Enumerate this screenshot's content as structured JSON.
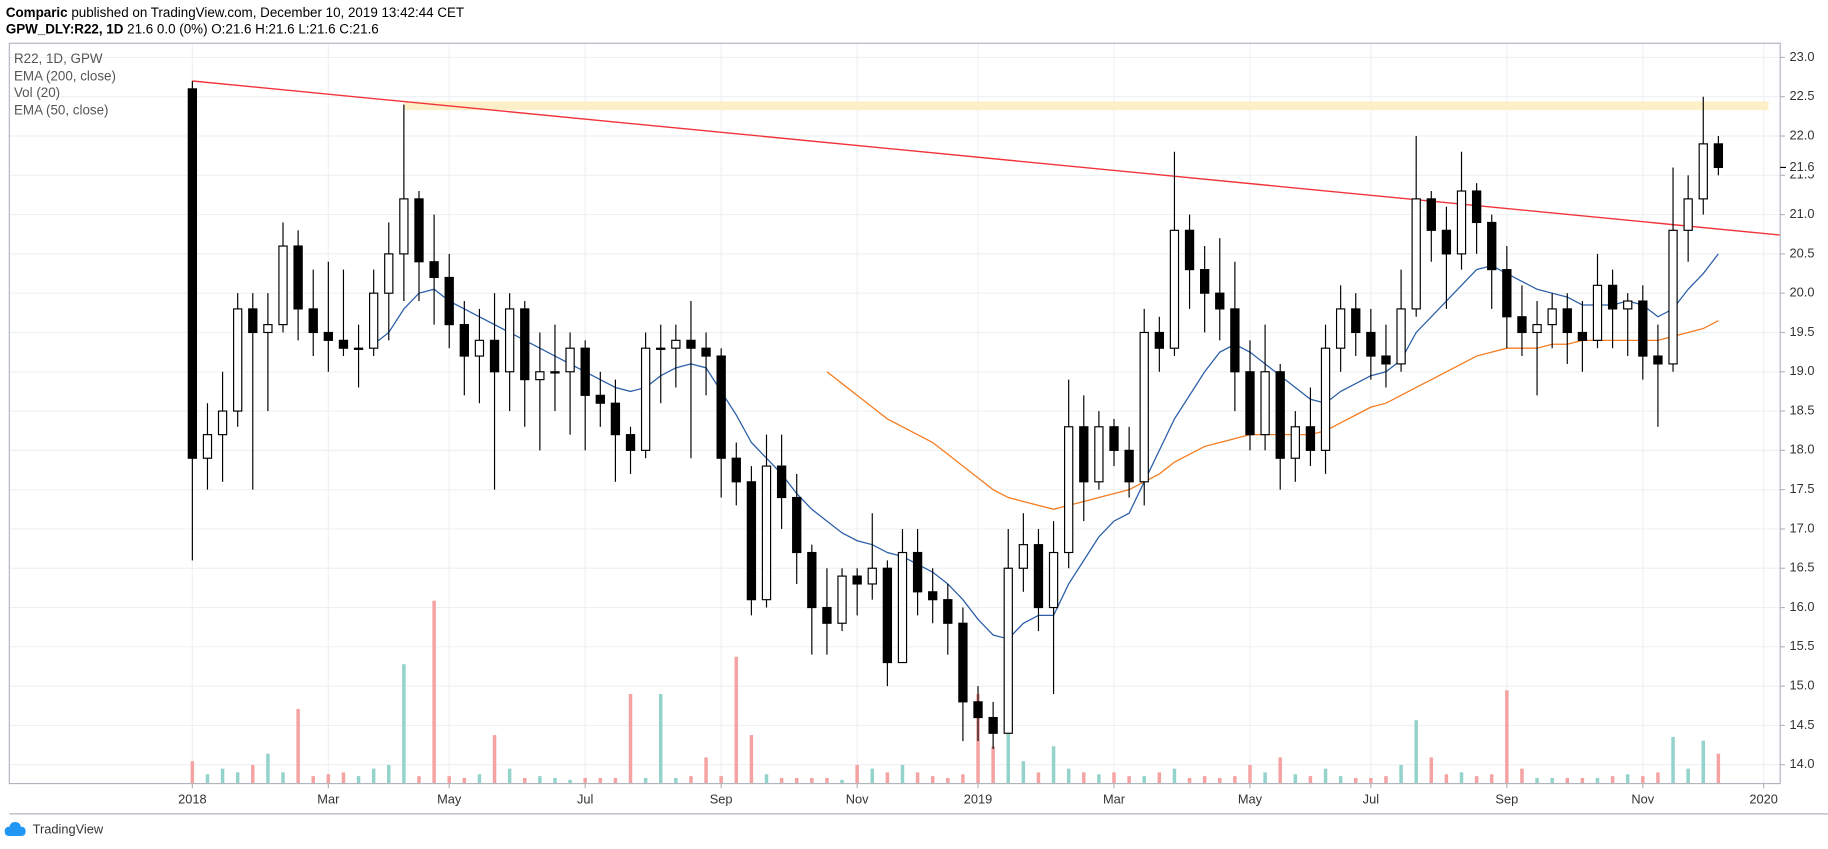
{
  "header": {
    "publisher": "Comparic",
    "published": "published on TradingView.com, December 10, 2019 13:42:44 CET",
    "symbol_line": "GPW_DLY:R22, 1D",
    "quote": "21.6 0.0 (0%) O:21.6 H:21.6 L:21.6 C:21.6"
  },
  "footer": {
    "brand": "TradingView"
  },
  "chart_data": {
    "type": "candlestick",
    "symbol_name": "R22, 1D, GPW",
    "categories": [
      "2018",
      null,
      null,
      null,
      null,
      null,
      null,
      null,
      null,
      "Mar",
      null,
      null,
      null,
      null,
      null,
      null,
      null,
      "May",
      null,
      null,
      null,
      null,
      null,
      null,
      null,
      null,
      "Jul",
      null,
      null,
      null,
      null,
      null,
      null,
      null,
      null,
      "Sep",
      null,
      null,
      null,
      null,
      null,
      null,
      null,
      null,
      "Nov",
      null,
      null,
      null,
      null,
      null,
      null,
      null,
      "2019",
      null,
      null,
      null,
      null,
      null,
      null,
      null,
      null,
      "Mar",
      null,
      null,
      null,
      null,
      null,
      null,
      null,
      null,
      "May",
      null,
      null,
      null,
      null,
      null,
      null,
      null,
      "Jul",
      null,
      null,
      null,
      null,
      null,
      null,
      null,
      null,
      "Sep",
      null,
      null,
      null,
      null,
      null,
      null,
      null,
      null,
      "Nov",
      null,
      null,
      null,
      null,
      null,
      null,
      null,
      "2020"
    ],
    "ohlc": [
      [
        22.6,
        22.7,
        16.6,
        17.9
      ],
      [
        17.9,
        18.6,
        17.5,
        18.2
      ],
      [
        18.2,
        19.0,
        17.6,
        18.5
      ],
      [
        18.5,
        20.0,
        18.3,
        19.8
      ],
      [
        19.8,
        20.0,
        17.5,
        19.5
      ],
      [
        19.5,
        20.0,
        18.5,
        19.6
      ],
      [
        19.6,
        20.9,
        19.5,
        20.6
      ],
      [
        20.6,
        20.8,
        19.4,
        19.8
      ],
      [
        19.8,
        20.3,
        19.2,
        19.5
      ],
      [
        19.5,
        20.4,
        19.0,
        19.4
      ],
      [
        19.4,
        20.3,
        19.2,
        19.3
      ],
      [
        19.3,
        19.6,
        18.8,
        19.3
      ],
      [
        19.3,
        20.3,
        19.2,
        20.0
      ],
      [
        20.0,
        20.9,
        19.4,
        20.5
      ],
      [
        20.5,
        22.4,
        19.9,
        21.2
      ],
      [
        21.2,
        21.3,
        19.9,
        20.4
      ],
      [
        20.4,
        21.0,
        19.6,
        20.2
      ],
      [
        20.2,
        20.5,
        19.3,
        19.6
      ],
      [
        19.6,
        19.9,
        18.7,
        19.2
      ],
      [
        19.2,
        19.8,
        18.6,
        19.4
      ],
      [
        19.4,
        20.0,
        17.5,
        19.0
      ],
      [
        19.0,
        20.0,
        18.5,
        19.8
      ],
      [
        19.8,
        19.9,
        18.3,
        18.9
      ],
      [
        18.9,
        19.5,
        18.0,
        19.0
      ],
      [
        19.0,
        19.6,
        18.5,
        19.0
      ],
      [
        19.0,
        19.5,
        18.2,
        19.3
      ],
      [
        19.3,
        19.4,
        18.0,
        18.7
      ],
      [
        18.7,
        19.0,
        18.3,
        18.6
      ],
      [
        18.6,
        18.9,
        17.6,
        18.2
      ],
      [
        18.2,
        18.3,
        17.7,
        18.0
      ],
      [
        18.0,
        19.5,
        17.9,
        19.3
      ],
      [
        19.3,
        19.6,
        18.6,
        19.3
      ],
      [
        19.3,
        19.6,
        18.8,
        19.4
      ],
      [
        19.4,
        19.9,
        17.9,
        19.3
      ],
      [
        19.3,
        19.5,
        18.7,
        19.2
      ],
      [
        19.2,
        19.3,
        17.4,
        17.9
      ],
      [
        17.9,
        18.1,
        17.3,
        17.6
      ],
      [
        17.6,
        17.8,
        15.9,
        16.1
      ],
      [
        16.1,
        18.2,
        16.0,
        17.8
      ],
      [
        17.8,
        18.2,
        17.0,
        17.4
      ],
      [
        17.4,
        17.7,
        16.3,
        16.7
      ],
      [
        16.7,
        16.8,
        15.4,
        16.0
      ],
      [
        16.0,
        16.5,
        15.4,
        15.8
      ],
      [
        15.8,
        16.5,
        15.7,
        16.4
      ],
      [
        16.4,
        16.5,
        15.9,
        16.3
      ],
      [
        16.3,
        17.2,
        16.1,
        16.5
      ],
      [
        16.5,
        16.6,
        15.0,
        15.3
      ],
      [
        15.3,
        17.0,
        15.3,
        16.7
      ],
      [
        16.7,
        17.0,
        15.9,
        16.2
      ],
      [
        16.2,
        16.5,
        15.8,
        16.1
      ],
      [
        16.1,
        16.3,
        15.4,
        15.8
      ],
      [
        15.8,
        16.0,
        14.3,
        14.8
      ],
      [
        14.8,
        15.0,
        14.3,
        14.6
      ],
      [
        14.6,
        14.8,
        14.2,
        14.4
      ],
      [
        14.4,
        17.0,
        14.4,
        16.5
      ],
      [
        16.5,
        17.2,
        16.2,
        16.8
      ],
      [
        16.8,
        17.0,
        15.7,
        16.0
      ],
      [
        16.0,
        17.1,
        14.9,
        16.7
      ],
      [
        16.7,
        18.9,
        16.5,
        18.3
      ],
      [
        18.3,
        18.7,
        17.1,
        17.6
      ],
      [
        17.6,
        18.5,
        17.5,
        18.3
      ],
      [
        18.3,
        18.4,
        17.8,
        18.0
      ],
      [
        18.0,
        18.3,
        17.4,
        17.6
      ],
      [
        17.6,
        19.8,
        17.3,
        19.5
      ],
      [
        19.5,
        19.7,
        19.0,
        19.3
      ],
      [
        19.3,
        21.8,
        19.2,
        20.8
      ],
      [
        20.8,
        21.0,
        19.8,
        20.3
      ],
      [
        20.3,
        20.6,
        19.5,
        20.0
      ],
      [
        20.0,
        20.7,
        19.4,
        19.8
      ],
      [
        19.8,
        20.4,
        18.5,
        19.0
      ],
      [
        19.0,
        19.4,
        18.0,
        18.2
      ],
      [
        18.2,
        19.6,
        18.0,
        19.0
      ],
      [
        19.0,
        19.1,
        17.5,
        17.9
      ],
      [
        17.9,
        18.5,
        17.6,
        18.3
      ],
      [
        18.3,
        18.8,
        17.8,
        18.0
      ],
      [
        18.0,
        19.6,
        17.7,
        19.3
      ],
      [
        19.3,
        20.1,
        19.0,
        19.8
      ],
      [
        19.8,
        20.0,
        19.2,
        19.5
      ],
      [
        19.5,
        19.8,
        18.9,
        19.2
      ],
      [
        19.2,
        19.6,
        18.8,
        19.1
      ],
      [
        19.1,
        20.3,
        19.0,
        19.8
      ],
      [
        19.8,
        22.0,
        19.7,
        21.2
      ],
      [
        21.2,
        21.3,
        20.4,
        20.8
      ],
      [
        20.8,
        21.1,
        19.8,
        20.5
      ],
      [
        20.5,
        21.8,
        20.3,
        21.3
      ],
      [
        21.3,
        21.4,
        20.5,
        20.9
      ],
      [
        20.9,
        21.0,
        19.8,
        20.3
      ],
      [
        20.3,
        20.6,
        19.3,
        19.7
      ],
      [
        19.7,
        20.1,
        19.2,
        19.5
      ],
      [
        19.5,
        19.9,
        18.7,
        19.6
      ],
      [
        19.6,
        20.0,
        19.3,
        19.8
      ],
      [
        19.8,
        20.0,
        19.1,
        19.5
      ],
      [
        19.5,
        19.9,
        19.0,
        19.4
      ],
      [
        19.4,
        20.5,
        19.3,
        20.1
      ],
      [
        20.1,
        20.3,
        19.3,
        19.8
      ],
      [
        19.8,
        20.0,
        19.2,
        19.9
      ],
      [
        19.9,
        20.1,
        18.9,
        19.2
      ],
      [
        19.2,
        19.6,
        18.3,
        19.1
      ],
      [
        19.1,
        21.6,
        19.0,
        20.8
      ],
      [
        20.8,
        21.5,
        20.4,
        21.2
      ],
      [
        21.2,
        22.5,
        21.0,
        21.9
      ],
      [
        21.9,
        22.0,
        21.5,
        21.6
      ],
      null,
      null,
      null
    ],
    "up_color": "#ffffff",
    "down_color": "#000000",
    "volume": {
      "name": "Vol (20)",
      "up_color": "#93d3cb",
      "down_color": "#f4a3a2",
      "values": [
        12,
        5,
        8,
        6,
        10,
        16,
        6,
        40,
        4,
        5,
        6,
        4,
        8,
        10,
        64,
        4,
        98,
        4,
        3,
        5,
        26,
        8,
        3,
        4,
        3,
        2,
        3,
        3,
        3,
        48,
        3,
        48,
        3,
        4,
        14,
        4,
        68,
        26,
        5,
        3,
        3,
        3,
        3,
        2,
        10,
        8,
        6,
        10,
        6,
        4,
        3,
        5,
        48,
        20,
        46,
        12,
        6,
        20,
        8,
        6,
        5,
        6,
        4,
        4,
        6,
        8,
        3,
        4,
        3,
        4,
        10,
        6,
        14,
        5,
        4,
        8,
        4,
        3,
        3,
        4,
        10,
        34,
        14,
        5,
        6,
        4,
        5,
        50,
        8,
        3,
        3,
        3,
        3,
        3,
        4,
        5,
        4,
        6,
        25,
        8,
        23,
        16,
        null,
        null,
        null
      ]
    },
    "series": [
      {
        "name": "EMA (200, close)",
        "color": "#f57c20",
        "values": [
          null,
          null,
          null,
          null,
          null,
          null,
          null,
          null,
          null,
          null,
          null,
          null,
          null,
          null,
          null,
          null,
          null,
          null,
          null,
          null,
          null,
          null,
          null,
          null,
          null,
          null,
          null,
          null,
          null,
          null,
          null,
          null,
          null,
          null,
          null,
          null,
          null,
          null,
          null,
          null,
          null,
          null,
          19.0,
          18.85,
          18.7,
          18.55,
          18.4,
          18.3,
          18.2,
          18.1,
          17.95,
          17.8,
          17.65,
          17.5,
          17.4,
          17.35,
          17.3,
          17.25,
          17.3,
          17.35,
          17.4,
          17.45,
          17.5,
          17.6,
          17.7,
          17.85,
          17.95,
          18.05,
          18.1,
          18.15,
          18.2,
          18.2,
          18.2,
          18.2,
          18.2,
          18.25,
          18.35,
          18.45,
          18.55,
          18.6,
          18.7,
          18.8,
          18.9,
          19.0,
          19.1,
          19.2,
          19.25,
          19.3,
          19.3,
          19.3,
          19.35,
          19.35,
          19.4,
          19.4,
          19.4,
          19.4,
          19.4,
          19.4,
          19.45,
          19.5,
          19.55,
          19.65,
          null,
          null,
          null
        ]
      },
      {
        "name": "EMA (50, close)",
        "color": "#2d5fa8",
        "values": [
          null,
          null,
          null,
          null,
          null,
          null,
          null,
          null,
          null,
          null,
          null,
          null,
          19.35,
          19.5,
          19.8,
          20.0,
          20.05,
          19.9,
          19.8,
          19.7,
          19.6,
          19.5,
          19.4,
          19.3,
          19.2,
          19.1,
          19.0,
          18.9,
          18.8,
          18.75,
          18.8,
          18.95,
          19.05,
          19.1,
          19.05,
          18.75,
          18.45,
          18.1,
          17.9,
          17.7,
          17.45,
          17.25,
          17.1,
          16.95,
          16.85,
          16.8,
          16.7,
          16.65,
          16.55,
          16.45,
          16.3,
          16.1,
          15.85,
          15.65,
          15.6,
          15.8,
          15.9,
          15.9,
          16.3,
          16.6,
          16.9,
          17.1,
          17.2,
          17.6,
          18.0,
          18.4,
          18.7,
          19.0,
          19.25,
          19.35,
          19.25,
          19.1,
          18.95,
          18.8,
          18.65,
          18.6,
          18.75,
          18.85,
          18.95,
          19.0,
          19.15,
          19.5,
          19.7,
          19.9,
          20.1,
          20.3,
          20.35,
          20.25,
          20.15,
          20.05,
          20.0,
          19.95,
          19.85,
          19.85,
          19.85,
          19.9,
          19.85,
          19.7,
          19.8,
          20.05,
          20.25,
          20.5,
          null,
          null,
          null
        ]
      }
    ],
    "trend_line": [
      22.7,
      20.74
    ],
    "trend_color": "#f0353a",
    "resistance_zone": [
      22.33,
      22.44
    ],
    "zone_color": "#fdefc8",
    "last_price": 21.6,
    "ylim": [
      13.76,
      23.18
    ],
    "yticks": [
      {
        "value": 14,
        "label": "14.0"
      },
      14.5,
      {
        "value": 15,
        "label": "15.0"
      },
      15.5,
      {
        "value": 16,
        "label": "16.0"
      },
      16.5,
      {
        "value": 17,
        "label": "17.0"
      },
      17.5,
      {
        "value": 18,
        "label": "18.0"
      },
      18.5,
      {
        "value": 19,
        "label": "19.0"
      },
      19.5,
      {
        "value": 20,
        "label": "20.0"
      },
      20.5,
      {
        "value": 21,
        "label": "21.0"
      },
      21.5,
      {
        "value": 22,
        "label": "22.0"
      },
      22.5,
      {
        "value": 23,
        "label": "23.0"
      }
    ],
    "grid": true
  }
}
